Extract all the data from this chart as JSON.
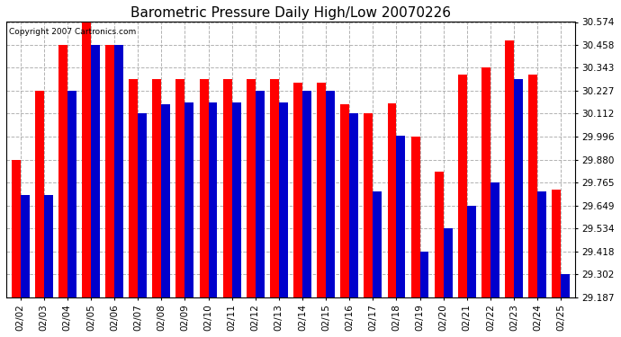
{
  "title": "Barometric Pressure Daily High/Low 20070226",
  "copyright": "Copyright 2007 Cartronics.com",
  "dates": [
    "02/02",
    "02/03",
    "02/04",
    "02/05",
    "02/06",
    "02/07",
    "02/08",
    "02/09",
    "02/10",
    "02/11",
    "02/12",
    "02/13",
    "02/14",
    "02/15",
    "02/16",
    "02/17",
    "02/18",
    "02/19",
    "02/20",
    "02/21",
    "02/22",
    "02/23",
    "02/24",
    "02/25"
  ],
  "highs": [
    29.88,
    30.227,
    30.458,
    30.574,
    30.458,
    30.285,
    30.285,
    30.285,
    30.285,
    30.285,
    30.285,
    30.285,
    30.27,
    30.27,
    30.16,
    30.112,
    30.165,
    29.996,
    29.82,
    30.31,
    30.343,
    30.48,
    30.31,
    29.73
  ],
  "lows": [
    29.7,
    29.7,
    30.227,
    30.458,
    30.458,
    30.112,
    30.16,
    30.17,
    30.17,
    30.17,
    30.227,
    30.17,
    30.227,
    30.227,
    30.112,
    29.72,
    30.0,
    29.418,
    29.534,
    29.649,
    29.765,
    30.285,
    29.72,
    29.302
  ],
  "high_color": "#ff0000",
  "low_color": "#0000cc",
  "background_color": "#ffffff",
  "ylim_min": 29.187,
  "ylim_max": 30.574,
  "yticks": [
    29.187,
    29.302,
    29.418,
    29.534,
    29.649,
    29.765,
    29.88,
    29.996,
    30.112,
    30.227,
    30.343,
    30.458,
    30.574
  ],
  "grid_color": "#aaaaaa",
  "title_fontsize": 11,
  "tick_fontsize": 7.5,
  "fig_width": 6.9,
  "fig_height": 3.75,
  "dpi": 100
}
